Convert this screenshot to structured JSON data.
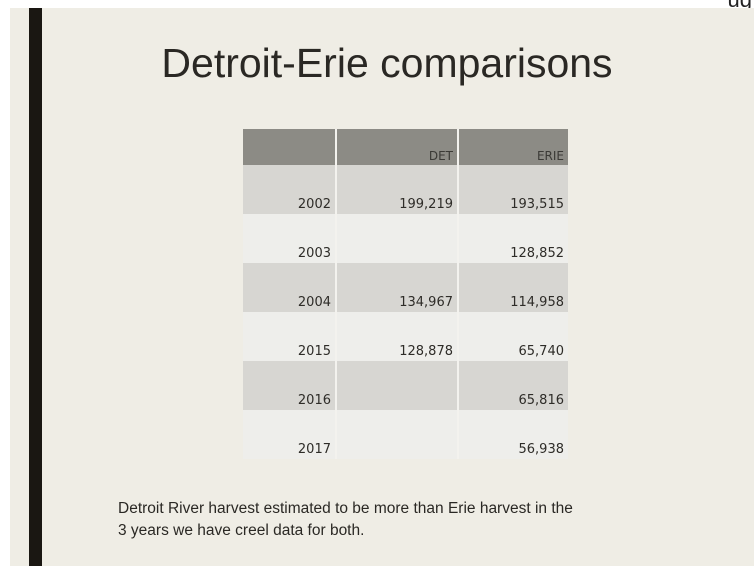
{
  "corner_text": "ug",
  "slide": {
    "title": "Detroit-Erie comparisons",
    "table": {
      "headers": [
        "",
        "DET",
        "ERIE"
      ],
      "rows": [
        [
          "2002",
          "199,219",
          "193,515"
        ],
        [
          "2003",
          "",
          "128,852"
        ],
        [
          "2004",
          "134,967",
          "114,958"
        ],
        [
          "2015",
          "128,878",
          "65,740"
        ],
        [
          "2016",
          "",
          "65,816"
        ],
        [
          "2017",
          "",
          "56,938"
        ]
      ]
    },
    "footnote_line1": "Detroit River harvest estimated to be more than Erie harvest in the",
    "footnote_line2": "3 years we have creel data for both."
  },
  "colors": {
    "slide_background": "#efede5",
    "accent_bar": "#1a1712",
    "header_row": "#8c8b85",
    "row_dark": "#d7d6d2",
    "row_light": "#eeeeeb"
  }
}
